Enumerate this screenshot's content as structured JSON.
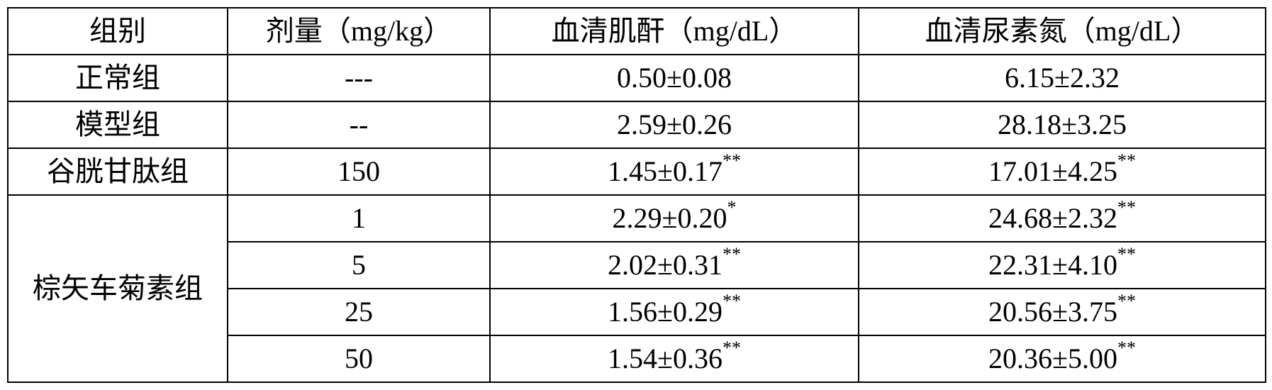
{
  "table": {
    "headers": {
      "group": "组别",
      "dose": "剂量（mg/kg）",
      "scr": "血清肌酐（mg/dL）",
      "bun": "血清尿素氮（mg/dL）"
    },
    "rows": {
      "normal": {
        "group": "正常组",
        "dose": "---",
        "scr": "0.50±0.08",
        "scr_sup": "",
        "bun": "6.15±2.32",
        "bun_sup": ""
      },
      "model": {
        "group": "模型组",
        "dose": "--",
        "scr": "2.59±0.26",
        "scr_sup": "",
        "bun": "28.18±3.25",
        "bun_sup": ""
      },
      "gsh": {
        "group": "谷胱甘肽组",
        "dose": "150",
        "scr": "1.45±0.17",
        "scr_sup": "**",
        "bun": "17.01±4.25",
        "bun_sup": "**"
      },
      "jac_label": "棕矢车菊素组",
      "jac1": {
        "dose": "1",
        "scr": "2.29±0.20",
        "scr_sup": "*",
        "bun": "24.68±2.32",
        "bun_sup": "**"
      },
      "jac2": {
        "dose": "5",
        "scr": "2.02±0.31",
        "scr_sup": "**",
        "bun": "22.31±4.10",
        "bun_sup": "**"
      },
      "jac3": {
        "dose": "25",
        "scr": "1.56±0.29",
        "scr_sup": "**",
        "bun": "20.56±3.75",
        "bun_sup": "**"
      },
      "jac4": {
        "dose": "50",
        "scr": "1.54±0.36",
        "scr_sup": "**",
        "bun": "20.36±5.00",
        "bun_sup": "**"
      }
    }
  }
}
